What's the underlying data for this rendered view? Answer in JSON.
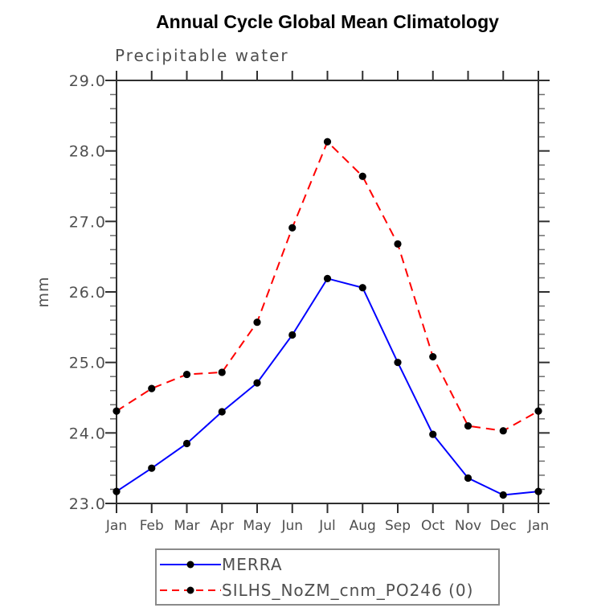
{
  "chart_data": {
    "type": "line",
    "title": "Annual Cycle Global Mean Climatology",
    "subtitle": "Precipitable water",
    "ylabel": "mm",
    "xlabel": "",
    "x_tick_labels": [
      "Jan",
      "Feb",
      "Mar",
      "Apr",
      "May",
      "Jun",
      "Jul",
      "Aug",
      "Sep",
      "Oct",
      "Nov",
      "Dec",
      "Jan"
    ],
    "y_tick_labels": [
      "23.0",
      "24.0",
      "25.0",
      "26.0",
      "27.0",
      "28.0",
      "29.0"
    ],
    "ylim": [
      23.0,
      29.0
    ],
    "y_major_step": 1.0,
    "y_minor_step": 0.2,
    "grid": false,
    "legend_position": "bottom",
    "series": [
      {
        "name": "MERRA",
        "color": "#0000ff",
        "style": "solid",
        "marker": "filled-circle",
        "marker_color": "#000000",
        "values": [
          23.17,
          23.5,
          23.85,
          24.3,
          24.71,
          25.39,
          26.19,
          26.06,
          25.0,
          23.98,
          23.36,
          23.12,
          23.17
        ]
      },
      {
        "name": "SILHS_NoZM_cnm_PO246 (0)",
        "color": "#ff0000",
        "style": "dashed",
        "marker": "filled-circle",
        "marker_color": "#000000",
        "values": [
          24.31,
          24.63,
          24.83,
          24.86,
          25.57,
          26.91,
          28.13,
          27.64,
          26.68,
          25.08,
          24.1,
          24.03,
          24.31
        ]
      }
    ],
    "colors": {
      "axis": "#2f2f2f",
      "minor_tick": "#6e6e6e",
      "tick_label": "#4f4f4f",
      "legend_border": "#8a8a8a"
    }
  }
}
